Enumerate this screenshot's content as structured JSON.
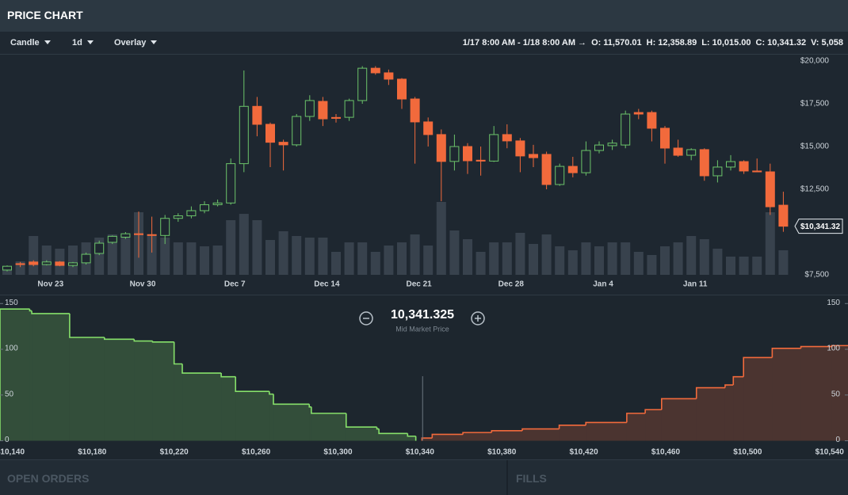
{
  "header": {
    "title": "PRICE CHART"
  },
  "toolbar": {
    "chart_type": "Candle",
    "interval": "1d",
    "overlay": "Overlay",
    "range": "1/17 8:00 AM - 1/18 8:00 AM →",
    "stats": [
      {
        "label": "O:",
        "value": "11,570.01"
      },
      {
        "label": "H:",
        "value": "12,358.89"
      },
      {
        "label": "L:",
        "value": "10,015.00"
      },
      {
        "label": "C:",
        "value": "10,341.32"
      },
      {
        "label": "V:",
        "value": "5,058"
      }
    ]
  },
  "chart_data": [
    {
      "type": "candlestick",
      "categories": [
        null,
        null,
        null,
        "Nov 23",
        null,
        null,
        null,
        null,
        null,
        null,
        "Nov 30",
        null,
        null,
        null,
        null,
        null,
        null,
        "Dec 7",
        null,
        null,
        null,
        null,
        null,
        null,
        "Dec 14",
        null,
        null,
        null,
        null,
        null,
        null,
        "Dec 21",
        null,
        null,
        null,
        null,
        null,
        null,
        "Dec 28",
        null,
        null,
        null,
        null,
        null,
        null,
        "Jan 4",
        null,
        null,
        null,
        null,
        null,
        null,
        "Jan 11",
        null,
        null,
        null,
        null,
        null,
        null,
        null
      ],
      "open": [
        7780,
        8150,
        8250,
        8100,
        8250,
        8050,
        8200,
        8750,
        9400,
        9700,
        9900,
        9850,
        9800,
        10800,
        10950,
        11250,
        11600,
        11700,
        14000,
        17350,
        16300,
        15250,
        15100,
        16760,
        17640,
        16700,
        16710,
        17690,
        19580,
        19310,
        18940,
        17780,
        16440,
        15700,
        14130,
        15000,
        14200,
        14150,
        15700,
        15330,
        14540,
        14540,
        12780,
        13840,
        13470,
        14770,
        15050,
        15090,
        16990,
        16990,
        16070,
        14910,
        14490,
        14820,
        13290,
        13800,
        14120,
        13570,
        13520,
        11570.01
      ],
      "high": [
        8050,
        8250,
        8350,
        8350,
        8300,
        8250,
        8800,
        9500,
        9800,
        10000,
        11200,
        10900,
        11000,
        11100,
        11500,
        11800,
        11900,
        14300,
        19450,
        17900,
        16400,
        15400,
        16900,
        18000,
        17900,
        16900,
        17800,
        19700,
        19700,
        19500,
        19000,
        17900,
        16700,
        16000,
        15700,
        15200,
        15000,
        16200,
        16300,
        15500,
        15100,
        14700,
        14000,
        14400,
        15300,
        15300,
        15400,
        17100,
        17200,
        17100,
        16200,
        15400,
        14900,
        14900,
        14200,
        14500,
        14200,
        14300,
        14000,
        12358.89
      ],
      "low": [
        7700,
        7950,
        8000,
        8050,
        8000,
        7950,
        8100,
        8650,
        9300,
        9600,
        8500,
        8800,
        9300,
        10600,
        10800,
        11100,
        11500,
        11600,
        13500,
        15600,
        13800,
        13600,
        15000,
        16500,
        16200,
        16400,
        16500,
        17500,
        19200,
        18600,
        17200,
        14000,
        15000,
        11800,
        13600,
        13400,
        13300,
        14100,
        14900,
        13500,
        13800,
        12500,
        12700,
        13200,
        13300,
        14600,
        14800,
        14900,
        16600,
        15300,
        14000,
        14400,
        14200,
        13000,
        12900,
        13600,
        13400,
        13500,
        11000,
        10015.0
      ],
      "close": [
        8000,
        8100,
        8100,
        8250,
        8050,
        8200,
        8700,
        9350,
        9750,
        9900,
        9850,
        9800,
        10800,
        10950,
        11250,
        11600,
        11700,
        14000,
        17350,
        16300,
        15250,
        15100,
        16760,
        17690,
        16620,
        16650,
        17690,
        19580,
        19310,
        18940,
        17780,
        16440,
        15700,
        14130,
        15000,
        14170,
        14150,
        15700,
        15330,
        14450,
        14350,
        12780,
        13840,
        13470,
        14770,
        15090,
        15200,
        16900,
        16900,
        16070,
        14910,
        14490,
        14820,
        13290,
        13800,
        14120,
        13570,
        13520,
        11480,
        10341.32
      ],
      "volume": [
        1470,
        2770,
        7990,
        6030,
        5380,
        6030,
        6680,
        7660,
        8310,
        8310,
        12880,
        8310,
        7660,
        6680,
        6680,
        5870,
        6030,
        11250,
        12550,
        11250,
        7170,
        8970,
        7990,
        7660,
        7660,
        4730,
        6680,
        6680,
        4730,
        6030,
        6680,
        8310,
        6030,
        15000,
        9130,
        7340,
        4730,
        6680,
        6680,
        8640,
        6360,
        8310,
        5870,
        5050,
        6680,
        5870,
        6680,
        6680,
        4730,
        4080,
        5870,
        6680,
        7990,
        7340,
        5380,
        3750,
        3750,
        3750,
        12880,
        5058
      ],
      "up_color": "#6cc46a",
      "down_color": "#f26a3c",
      "volume_color": "#3b4651",
      "ylim": [
        7360,
        20420
      ],
      "yticks": [
        {
          "value": 7500,
          "label": "$7,500"
        },
        {
          "value": 12500,
          "label": "$12,500"
        },
        {
          "value": 15000,
          "label": "$15,000"
        },
        {
          "value": 17500,
          "label": "$17,500"
        },
        {
          "value": 20000,
          "label": "$20,000"
        }
      ],
      "last_label": "$10,341.32",
      "grid": false
    },
    {
      "type": "depth",
      "xlim": [
        10135,
        10549
      ],
      "ylim": [
        -3,
        158
      ],
      "xticks": [
        {
          "value": 10140,
          "label": "$10,140"
        },
        {
          "value": 10180,
          "label": "$10,180"
        },
        {
          "value": 10220,
          "label": "$10,220"
        },
        {
          "value": 10260,
          "label": "$10,260"
        },
        {
          "value": 10300,
          "label": "$10,300"
        },
        {
          "value": 10340,
          "label": "$10,340"
        },
        {
          "value": 10380,
          "label": "$10,380"
        },
        {
          "value": 10420,
          "label": "$10,420"
        },
        {
          "value": 10460,
          "label": "$10,460"
        },
        {
          "value": 10500,
          "label": "$10,500"
        },
        {
          "value": 10540,
          "label": "$10,540"
        }
      ],
      "yticks": [
        0,
        50,
        100,
        150
      ],
      "series": [
        {
          "color": "#86e06a",
          "x": [
            10135,
            10149.5,
            10150.5,
            10169,
            10186,
            10200.5,
            10209.5,
            10220,
            10224,
            10243,
            10250,
            10266.5,
            10268.5,
            10286,
            10287,
            10304,
            10319,
            10320,
            10334,
            10338
          ],
          "values": [
            144,
            142,
            139,
            113,
            111,
            109,
            108,
            84,
            74,
            70,
            54,
            51,
            40,
            37,
            30,
            15,
            13,
            8,
            5,
            0
          ]
        },
        {
          "color": "#f26a3c",
          "x": [
            10341,
            10346,
            10361,
            10375,
            10390,
            10408,
            10421,
            10441,
            10450,
            10458,
            10475,
            10489,
            10493,
            10498,
            10512,
            10526,
            10541,
            10549
          ],
          "values": [
            3,
            7,
            9,
            11,
            13,
            17,
            20,
            30,
            34,
            46,
            58,
            61,
            70,
            91,
            101,
            103,
            104,
            104
          ]
        }
      ],
      "mid_price": {
        "value": 10341.325,
        "label": "10,341.325",
        "caption": "Mid Market Price"
      }
    }
  ],
  "panels": [
    "OPEN ORDERS",
    "FILLS"
  ]
}
